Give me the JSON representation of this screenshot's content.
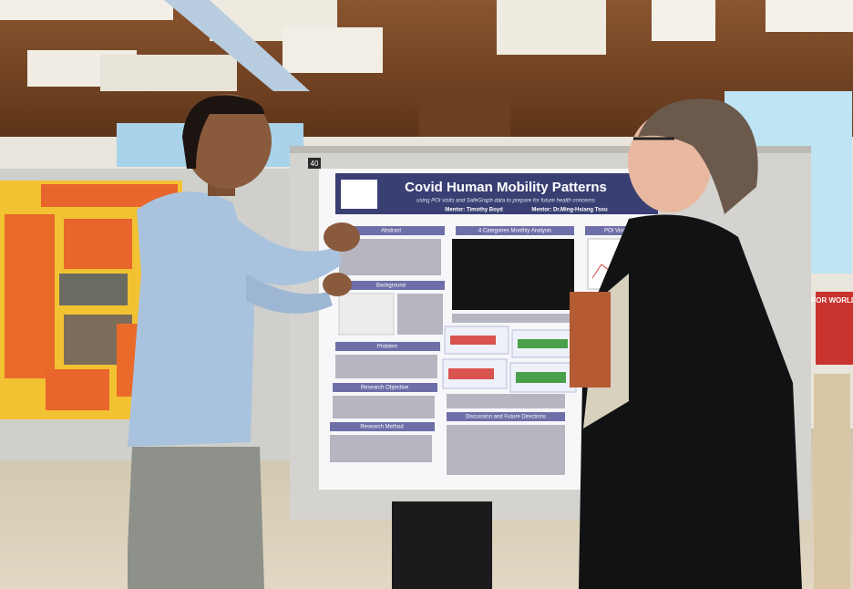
{
  "board_number": "40",
  "side_sign": "FOR WORLD",
  "poster": {
    "title": "Covid Human Mobility Patterns",
    "subtitle": "using POI visits and SafeGraph data to prepare for future health concerns",
    "mentors": [
      "Mentor: Timothy Boyd",
      "Mentor: Dr.Ming-Hsiang Tsou"
    ],
    "sections": [
      "Abstract",
      "4 Categories Monthly Analysis",
      "POI Visits and",
      "Background",
      "Problem",
      "Research Objective",
      "Research Method",
      "Discussion and Future Directions"
    ]
  }
}
